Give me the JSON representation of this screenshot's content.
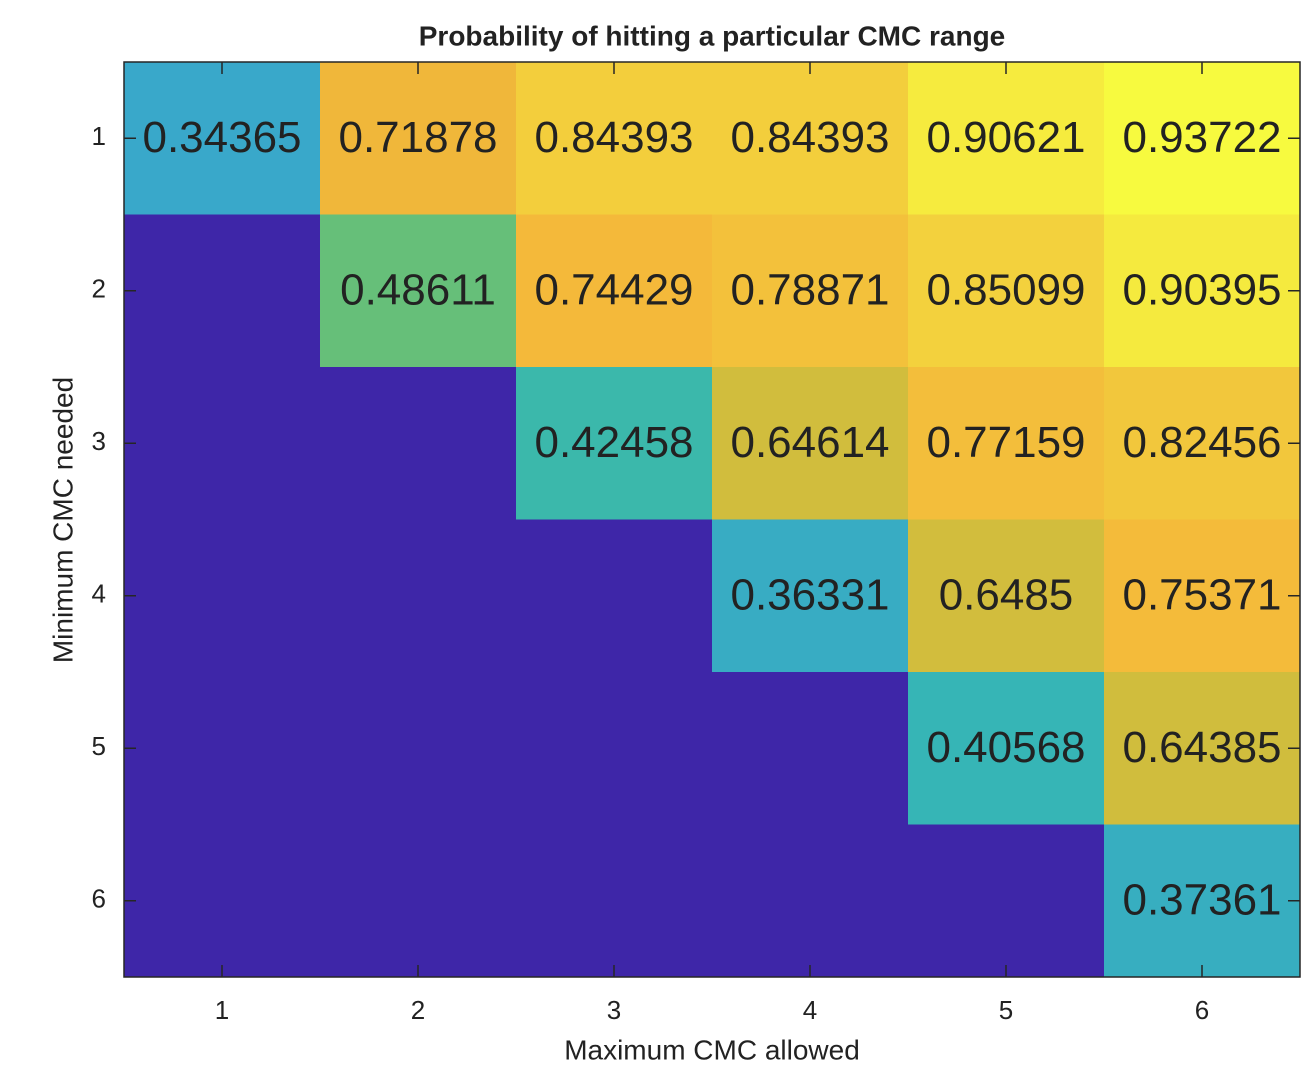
{
  "chart_data": {
    "type": "heatmap",
    "title": "Probability of hitting a particular CMC range",
    "xlabel": "Maximum CMC allowed",
    "ylabel": "Minimum CMC needed",
    "x": [
      1,
      2,
      3,
      4,
      5,
      6
    ],
    "y": [
      1,
      2,
      3,
      4,
      5,
      6
    ],
    "values": [
      [
        0.34365,
        0.71878,
        0.84393,
        0.84393,
        0.90621,
        0.93722
      ],
      [
        null,
        0.48611,
        0.74429,
        0.78871,
        0.85099,
        0.90395
      ],
      [
        null,
        null,
        0.42458,
        0.64614,
        0.77159,
        0.82456
      ],
      [
        null,
        null,
        null,
        0.36331,
        0.6485,
        0.75371
      ],
      [
        null,
        null,
        null,
        null,
        0.40568,
        0.64385
      ],
      [
        null,
        null,
        null,
        null,
        null,
        0.37361
      ]
    ],
    "xlim": [
      0.5,
      6.5
    ],
    "ylim": [
      0.5,
      6.5
    ],
    "y_reversed": true,
    "xticks": [
      1,
      2,
      3,
      4,
      5,
      6
    ],
    "yticks": [
      1,
      2,
      3,
      4,
      5,
      6
    ],
    "clim": [
      0,
      0.93722
    ],
    "colormap": [
      "#3e26a8",
      "#4554f0",
      "#2f86e6",
      "#3ba2d4",
      "#35b7b2",
      "#7fc35c",
      "#c8bf3e",
      "#f4b63a",
      "#f2c93c",
      "#f7fa3f"
    ]
  }
}
